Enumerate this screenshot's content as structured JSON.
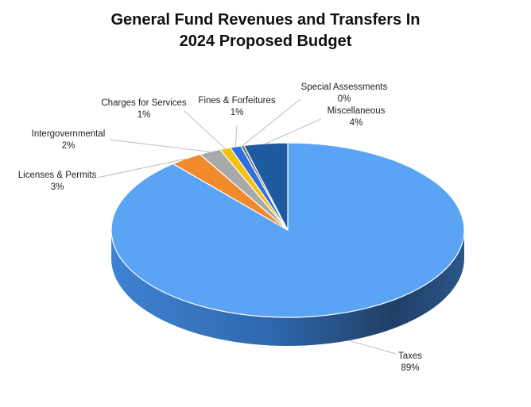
{
  "chart_data": {
    "type": "pie",
    "title_lines": [
      "General Fund Revenues and Transfers In",
      "2024 Proposed Budget"
    ],
    "slices": [
      {
        "label": "Taxes",
        "pct_label": "89%",
        "value": 89,
        "color": "#5ba3f5"
      },
      {
        "label": "Licenses & Permits",
        "pct_label": "3%",
        "value": 3,
        "color": "#f08a2b"
      },
      {
        "label": "Intergovernmental",
        "pct_label": "2%",
        "value": 2,
        "color": "#a9a9a9"
      },
      {
        "label": "Charges for Services",
        "pct_label": "1%",
        "value": 1,
        "color": "#f2c20f"
      },
      {
        "label": "Fines & Forfeitures",
        "pct_label": "1%",
        "value": 1,
        "color": "#2f6fe0"
      },
      {
        "label": "Special Assessments",
        "pct_label": "0%",
        "value": 0.3,
        "color": "#6f6f6f"
      },
      {
        "label": "Miscellaneous",
        "pct_label": "4%",
        "value": 4,
        "color": "#1f5aa0"
      }
    ],
    "legend": "none",
    "style": "3d-pie"
  }
}
